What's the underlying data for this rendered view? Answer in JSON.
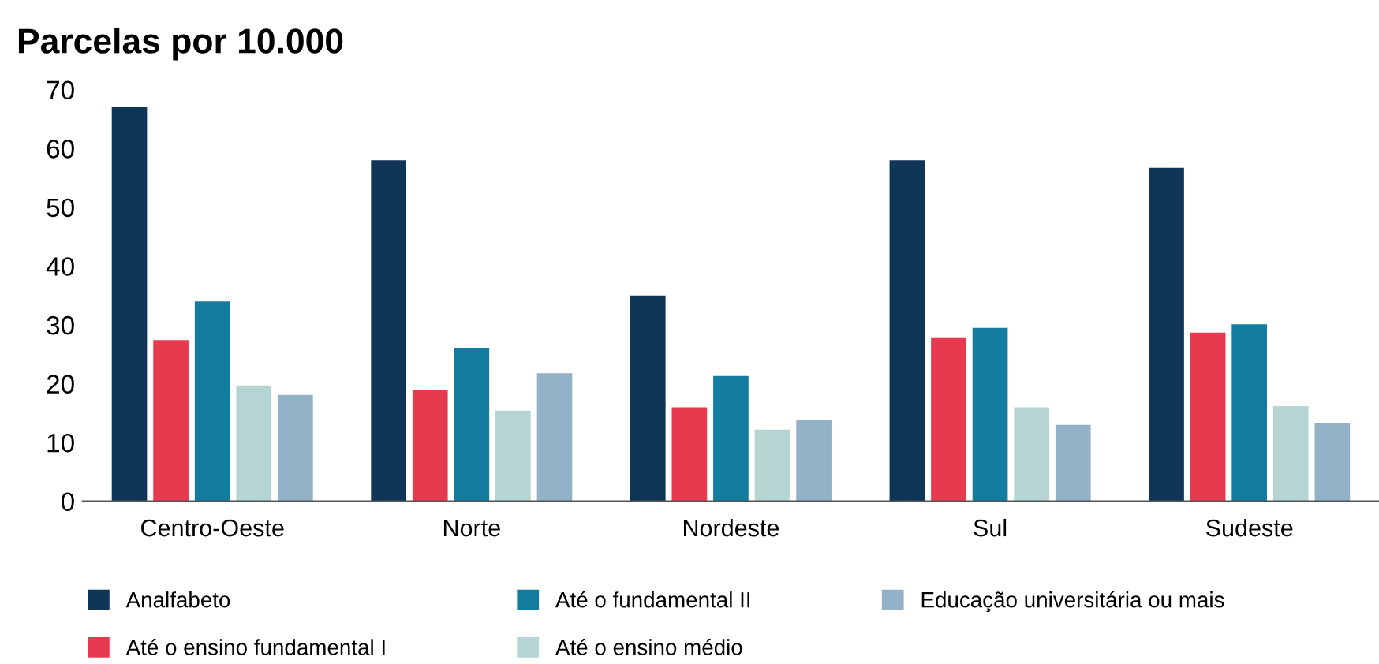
{
  "chart_data": {
    "type": "bar",
    "title": "Parcelas por 10.000",
    "categories": [
      "Centro-Oeste",
      "Norte",
      "Nordeste",
      "Sul",
      "Sudeste"
    ],
    "series": [
      {
        "name": "Analfabeto",
        "color": "#0f3557",
        "values": [
          67,
          58,
          35,
          58,
          56.7
        ]
      },
      {
        "name": "Até o ensino fundamental I",
        "color": "#e83a4f",
        "values": [
          27.4,
          18.9,
          16,
          27.9,
          28.7
        ]
      },
      {
        "name": "Até o fundamental II",
        "color": "#127d9e",
        "values": [
          34,
          26.1,
          21.3,
          29.5,
          30.1
        ]
      },
      {
        "name": "Até o ensino médio",
        "color": "#b5d5d2",
        "values": [
          19.7,
          15.4,
          12.2,
          16,
          16.2
        ]
      },
      {
        "name": "Educação universitária ou mais",
        "color": "#93b2c7",
        "values": [
          18.1,
          21.8,
          13.8,
          13,
          13.3
        ]
      }
    ],
    "ylim": [
      0,
      70
    ],
    "yticks": [
      0,
      10,
      20,
      30,
      40,
      50,
      60,
      70
    ],
    "grid": false,
    "legend": "bottom"
  }
}
